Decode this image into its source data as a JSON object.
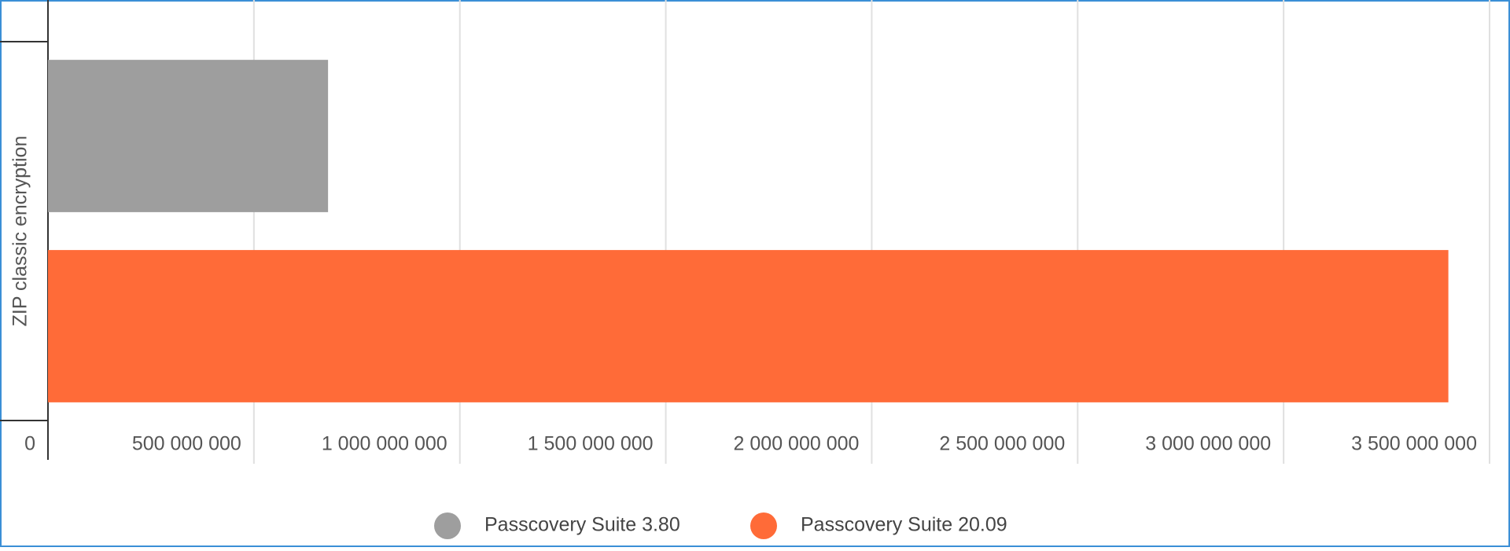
{
  "chart_data": {
    "type": "bar",
    "orientation": "horizontal",
    "categories": [
      "ZIP classic encryption"
    ],
    "series": [
      {
        "name": "Passcovery Suite 3.80",
        "color": "#9e9e9e",
        "values": [
          680000000
        ]
      },
      {
        "name": "Passcovery Suite 20.09",
        "color": "#ff6b38",
        "values": [
          3400000000
        ]
      }
    ],
    "xlim": [
      0,
      3500000000
    ],
    "xticks": [
      0,
      {
        "value": 500000000,
        "label": "500 000 000"
      },
      {
        "value": 1000000000,
        "label": "1 000 000 000"
      },
      {
        "value": 1500000000,
        "label": "1 500 000 000"
      },
      {
        "value": 2000000000,
        "label": "2 000 000 000"
      },
      {
        "value": 2500000000,
        "label": "2 500 000 000"
      },
      {
        "value": 3000000000,
        "label": "3 000 000 000"
      },
      {
        "value": 3500000000,
        "label": "3 500 000 000"
      }
    ],
    "grid": true,
    "legend": "bottom"
  }
}
